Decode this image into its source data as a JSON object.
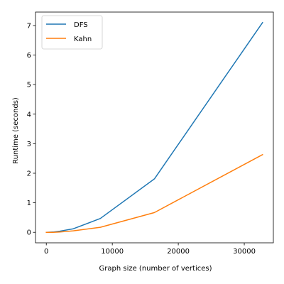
{
  "chart_data": {
    "type": "line",
    "title": "",
    "xlabel": "Graph size (number of vertices)",
    "ylabel": "Runtime (seconds)",
    "xlim": [
      -1638,
      34406
    ],
    "ylim": [
      -0.355,
      7.455
    ],
    "xticks": [
      0,
      10000,
      20000,
      30000
    ],
    "xtick_labels": [
      "0",
      "10000",
      "20000",
      "30000"
    ],
    "yticks": [
      0,
      1,
      2,
      3,
      4,
      5,
      6,
      7
    ],
    "ytick_labels": [
      "0",
      "1",
      "2",
      "3",
      "4",
      "5",
      "6",
      "7"
    ],
    "grid": false,
    "legend_position": "top-left",
    "x": [
      0,
      1024,
      2048,
      4096,
      8192,
      16384,
      32768
    ],
    "series": [
      {
        "name": "DFS",
        "color": "#1f77b4",
        "values": [
          0.0,
          0.01,
          0.04,
          0.12,
          0.47,
          1.81,
          7.1
        ]
      },
      {
        "name": "Kahn",
        "color": "#ff7f0e",
        "values": [
          0.0,
          0.0,
          0.01,
          0.05,
          0.17,
          0.67,
          2.63
        ]
      }
    ]
  }
}
